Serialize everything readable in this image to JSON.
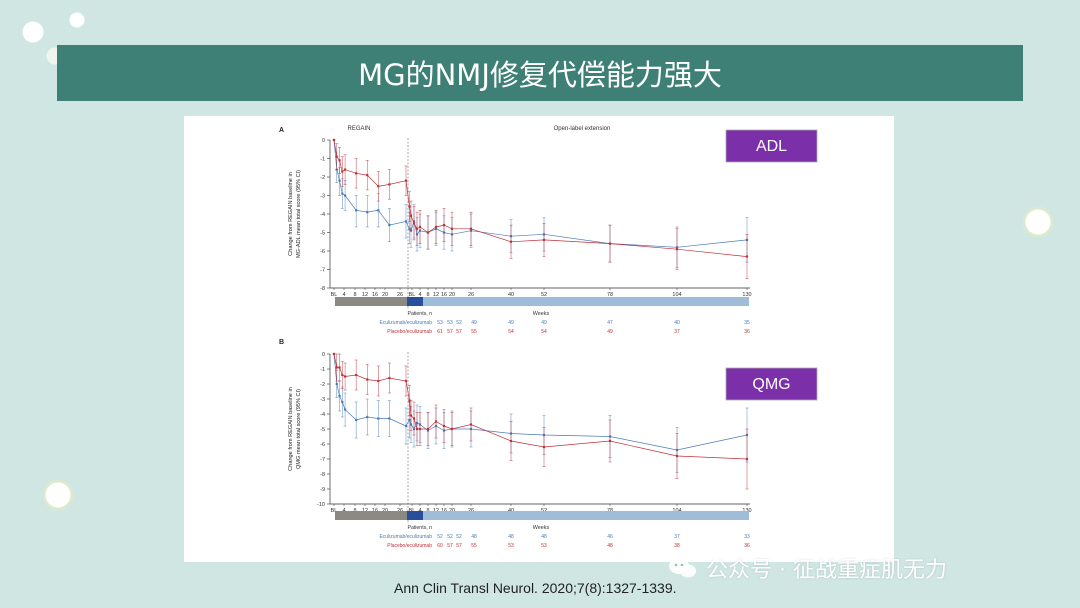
{
  "slide": {
    "title": "MG的NMJ修复代偿能力强大",
    "citation": "Ann Clin Transl Neurol. 2020;7(8):1327-1339.",
    "watermark": "公众号 · 征战重症肌无力"
  },
  "colors": {
    "title_bg": "#3e8075",
    "badge_bg": "#7b2fa8",
    "ecu": "#4a7bb8",
    "placebo": "#c0303a",
    "phase_regain": "#8a8a82",
    "phase_ole": "#9fbdd8",
    "phase_mid": "#2a4f9a"
  },
  "chart_data": [
    {
      "type": "line",
      "panel": "A",
      "badge": "ADL",
      "phase_labels": [
        "REGAIN",
        "Open-label extension"
      ],
      "ylabel": "Change from REGAIN baseline in MG-ADL mean total score (95% CI)",
      "ylabel_lines": [
        "Change from REGAIN baseline in",
        "MG-ADL mean total score (95% CI)"
      ],
      "xlabel": "Weeks",
      "ylim": [
        -8,
        0
      ],
      "yticks": [
        0,
        -1,
        -2,
        -3,
        -4,
        -5,
        -6,
        -7,
        -8
      ],
      "x_ticks_regain": [
        "BL",
        "4",
        "8",
        "12",
        "16",
        "20",
        "26"
      ],
      "x_ticks_ole": [
        "BL",
        "4",
        "8",
        "12",
        "16",
        "20",
        "26",
        "40",
        "52",
        "78",
        "104",
        "130"
      ],
      "patients_label": "Patients, n",
      "series": [
        {
          "name": "Eculizumab/eculizumab",
          "points": [
            {
              "t": -26,
              "y": 0,
              "lo": 0,
              "hi": 0
            },
            {
              "t": -25,
              "y": -1.6,
              "lo": -2.3,
              "hi": -0.9
            },
            {
              "t": -24,
              "y": -2.2,
              "lo": -3.0,
              "hi": -1.5
            },
            {
              "t": -23,
              "y": -2.9,
              "lo": -3.7,
              "hi": -2.1
            },
            {
              "t": -22,
              "y": -3.0,
              "lo": -3.8,
              "hi": -2.2
            },
            {
              "t": -18,
              "y": -3.8,
              "lo": -4.7,
              "hi": -3.0
            },
            {
              "t": -14,
              "y": -3.9,
              "lo": -4.7,
              "hi": -3.0
            },
            {
              "t": -10,
              "y": -3.8,
              "lo": -4.7,
              "hi": -2.9
            },
            {
              "t": -6,
              "y": -4.6,
              "lo": -5.5,
              "hi": -3.7
            },
            {
              "t": 0,
              "y": -4.4,
              "lo": -5.3,
              "hi": -3.5
            },
            {
              "t": 0.5,
              "y": -4.8,
              "lo": -5.6,
              "hi": -3.9
            },
            {
              "t": 1,
              "y": -4.9,
              "lo": -5.8,
              "hi": -4.0
            },
            {
              "t": 2,
              "y": -4.4,
              "lo": -5.3,
              "hi": -3.5
            },
            {
              "t": 3,
              "y": -5.1,
              "lo": -6.0,
              "hi": -4.2
            },
            {
              "t": 4,
              "y": -4.9,
              "lo": -5.8,
              "hi": -4.0
            },
            {
              "t": 8,
              "y": -5.0,
              "lo": -5.9,
              "hi": -4.1
            },
            {
              "t": 12,
              "y": -4.8,
              "lo": -5.7,
              "hi": -3.9
            },
            {
              "t": 16,
              "y": -5.0,
              "lo": -5.9,
              "hi": -4.1
            },
            {
              "t": 20,
              "y": -5.1,
              "lo": -6.0,
              "hi": -4.2
            },
            {
              "t": 26,
              "y": -4.9,
              "lo": -5.8,
              "hi": -4.0
            },
            {
              "t": 40,
              "y": -5.2,
              "lo": -6.1,
              "hi": -4.3
            },
            {
              "t": 52,
              "y": -5.1,
              "lo": -6.0,
              "hi": -4.2
            },
            {
              "t": 78,
              "y": -5.6,
              "lo": -6.6,
              "hi": -4.6
            },
            {
              "t": 104,
              "y": -5.8,
              "lo": -6.9,
              "hi": -4.7
            },
            {
              "t": 130,
              "y": -5.4,
              "lo": -6.6,
              "hi": -4.2
            }
          ],
          "n": [
            "53",
            "53",
            "52",
            "49",
            "49",
            "49",
            "47",
            "40",
            "35"
          ]
        },
        {
          "name": "Placebo/eculizumab",
          "points": [
            {
              "t": -26,
              "y": 0,
              "lo": 0,
              "hi": 0
            },
            {
              "t": -25,
              "y": -0.9,
              "lo": -1.6,
              "hi": -0.2
            },
            {
              "t": -24,
              "y": -1.1,
              "lo": -1.8,
              "hi": -0.4
            },
            {
              "t": -23,
              "y": -1.7,
              "lo": -2.5,
              "hi": -0.9
            },
            {
              "t": -22,
              "y": -1.6,
              "lo": -2.4,
              "hi": -0.8
            },
            {
              "t": -18,
              "y": -1.8,
              "lo": -2.6,
              "hi": -1.0
            },
            {
              "t": -14,
              "y": -1.9,
              "lo": -2.7,
              "hi": -1.1
            },
            {
              "t": -10,
              "y": -2.5,
              "lo": -3.3,
              "hi": -1.7
            },
            {
              "t": -6,
              "y": -2.4,
              "lo": -3.2,
              "hi": -1.6
            },
            {
              "t": 0,
              "y": -2.2,
              "lo": -3.0,
              "hi": -1.4
            },
            {
              "t": 0.5,
              "y": -3.6,
              "lo": -4.4,
              "hi": -2.8
            },
            {
              "t": 1,
              "y": -4.1,
              "lo": -4.9,
              "hi": -3.3
            },
            {
              "t": 2,
              "y": -4.5,
              "lo": -5.4,
              "hi": -3.6
            },
            {
              "t": 3,
              "y": -4.8,
              "lo": -5.7,
              "hi": -3.9
            },
            {
              "t": 4,
              "y": -4.7,
              "lo": -5.6,
              "hi": -3.8
            },
            {
              "t": 8,
              "y": -5.0,
              "lo": -5.9,
              "hi": -4.1
            },
            {
              "t": 12,
              "y": -4.7,
              "lo": -5.6,
              "hi": -3.8
            },
            {
              "t": 16,
              "y": -4.6,
              "lo": -5.5,
              "hi": -3.7
            },
            {
              "t": 20,
              "y": -4.8,
              "lo": -5.7,
              "hi": -3.9
            },
            {
              "t": 26,
              "y": -4.8,
              "lo": -5.7,
              "hi": -3.9
            },
            {
              "t": 40,
              "y": -5.5,
              "lo": -6.4,
              "hi": -4.6
            },
            {
              "t": 52,
              "y": -5.4,
              "lo": -6.3,
              "hi": -4.5
            },
            {
              "t": 78,
              "y": -5.6,
              "lo": -6.6,
              "hi": -4.6
            },
            {
              "t": 104,
              "y": -5.9,
              "lo": -7.0,
              "hi": -4.8
            },
            {
              "t": 130,
              "y": -6.3,
              "lo": -7.5,
              "hi": -5.1
            }
          ],
          "n": [
            "61",
            "57",
            "57",
            "55",
            "54",
            "54",
            "49",
            "37",
            "36"
          ]
        }
      ]
    },
    {
      "type": "line",
      "panel": "B",
      "badge": "QMG",
      "ylabel": "Change from REGAIN baseline in QMG mean total score (95% CI)",
      "ylabel_lines": [
        "Change from REGAIN baseline in",
        "QMG mean total score (95% CI)"
      ],
      "xlabel": "Weeks",
      "ylim": [
        -10,
        0
      ],
      "yticks": [
        0,
        -1,
        -2,
        -3,
        -4,
        -5,
        -6,
        -7,
        -8,
        -9,
        -10
      ],
      "x_ticks_regain": [
        "BL",
        "4",
        "8",
        "12",
        "16",
        "20",
        "26"
      ],
      "x_ticks_ole": [
        "BL",
        "4",
        "8",
        "12",
        "16",
        "20",
        "26",
        "40",
        "52",
        "78",
        "104",
        "130"
      ],
      "patients_label": "Patients, n",
      "series": [
        {
          "name": "Eculizumab/eculizumab",
          "points": [
            {
              "t": -26,
              "y": 0,
              "lo": 0,
              "hi": 0
            },
            {
              "t": -25,
              "y": -2.0,
              "lo": -2.9,
              "hi": -1.1
            },
            {
              "t": -24,
              "y": -2.8,
              "lo": -3.8,
              "hi": -1.8
            },
            {
              "t": -23,
              "y": -3.2,
              "lo": -4.2,
              "hi": -2.2
            },
            {
              "t": -22,
              "y": -3.7,
              "lo": -4.8,
              "hi": -2.6
            },
            {
              "t": -18,
              "y": -4.4,
              "lo": -5.6,
              "hi": -3.2
            },
            {
              "t": -14,
              "y": -4.2,
              "lo": -5.4,
              "hi": -3.0
            },
            {
              "t": -10,
              "y": -4.3,
              "lo": -5.5,
              "hi": -3.1
            },
            {
              "t": -6,
              "y": -4.3,
              "lo": -5.5,
              "hi": -3.1
            },
            {
              "t": 0,
              "y": -4.8,
              "lo": -6.0,
              "hi": -3.6
            },
            {
              "t": 0.5,
              "y": -4.4,
              "lo": -5.6,
              "hi": -3.2
            },
            {
              "t": 1,
              "y": -4.7,
              "lo": -5.9,
              "hi": -3.5
            },
            {
              "t": 2,
              "y": -5.0,
              "lo": -6.2,
              "hi": -3.8
            },
            {
              "t": 3,
              "y": -4.6,
              "lo": -5.8,
              "hi": -3.4
            },
            {
              "t": 4,
              "y": -4.7,
              "lo": -5.9,
              "hi": -3.5
            },
            {
              "t": 8,
              "y": -5.1,
              "lo": -6.3,
              "hi": -3.9
            },
            {
              "t": 12,
              "y": -4.8,
              "lo": -6.0,
              "hi": -3.6
            },
            {
              "t": 16,
              "y": -5.1,
              "lo": -6.3,
              "hi": -3.9
            },
            {
              "t": 20,
              "y": -5.0,
              "lo": -6.2,
              "hi": -3.8
            },
            {
              "t": 26,
              "y": -5.0,
              "lo": -6.2,
              "hi": -3.8
            },
            {
              "t": 40,
              "y": -5.3,
              "lo": -6.6,
              "hi": -4.0
            },
            {
              "t": 52,
              "y": -5.4,
              "lo": -6.7,
              "hi": -4.1
            },
            {
              "t": 78,
              "y": -5.5,
              "lo": -6.9,
              "hi": -4.1
            },
            {
              "t": 104,
              "y": -6.4,
              "lo": -7.9,
              "hi": -4.9
            },
            {
              "t": 130,
              "y": -5.4,
              "lo": -7.2,
              "hi": -3.6
            }
          ],
          "n": [
            "52",
            "52",
            "52",
            "48",
            "48",
            "48",
            "46",
            "37",
            "33"
          ]
        },
        {
          "name": "Placebo/eculizumab",
          "points": [
            {
              "t": -26,
              "y": 0,
              "lo": 0,
              "hi": 0
            },
            {
              "t": -25,
              "y": -0.9,
              "lo": -1.8,
              "hi": 0.0
            },
            {
              "t": -24,
              "y": -0.9,
              "lo": -1.8,
              "hi": 0.0
            },
            {
              "t": -23,
              "y": -1.4,
              "lo": -2.3,
              "hi": -0.5
            },
            {
              "t": -22,
              "y": -1.5,
              "lo": -2.4,
              "hi": -0.6
            },
            {
              "t": -18,
              "y": -1.4,
              "lo": -2.4,
              "hi": -0.4
            },
            {
              "t": -14,
              "y": -1.7,
              "lo": -2.7,
              "hi": -0.7
            },
            {
              "t": -10,
              "y": -1.8,
              "lo": -2.8,
              "hi": -0.8
            },
            {
              "t": -6,
              "y": -1.6,
              "lo": -2.6,
              "hi": -0.6
            },
            {
              "t": 0,
              "y": -1.8,
              "lo": -2.8,
              "hi": -0.8
            },
            {
              "t": 0.5,
              "y": -3.1,
              "lo": -4.1,
              "hi": -2.1
            },
            {
              "t": 1,
              "y": -4.1,
              "lo": -5.1,
              "hi": -3.1
            },
            {
              "t": 2,
              "y": -4.3,
              "lo": -5.4,
              "hi": -3.2
            },
            {
              "t": 3,
              "y": -5.0,
              "lo": -6.1,
              "hi": -3.9
            },
            {
              "t": 4,
              "y": -5.0,
              "lo": -6.1,
              "hi": -3.9
            },
            {
              "t": 8,
              "y": -5.0,
              "lo": -6.1,
              "hi": -3.9
            },
            {
              "t": 12,
              "y": -4.5,
              "lo": -5.6,
              "hi": -3.4
            },
            {
              "t": 16,
              "y": -4.8,
              "lo": -5.9,
              "hi": -3.7
            },
            {
              "t": 20,
              "y": -5.0,
              "lo": -6.1,
              "hi": -3.9
            },
            {
              "t": 26,
              "y": -4.7,
              "lo": -5.8,
              "hi": -3.6
            },
            {
              "t": 40,
              "y": -5.8,
              "lo": -7.1,
              "hi": -4.5
            },
            {
              "t": 52,
              "y": -6.2,
              "lo": -7.5,
              "hi": -4.9
            },
            {
              "t": 78,
              "y": -5.8,
              "lo": -7.2,
              "hi": -4.4
            },
            {
              "t": 104,
              "y": -6.8,
              "lo": -8.3,
              "hi": -5.3
            },
            {
              "t": 130,
              "y": -7.0,
              "lo": -9.0,
              "hi": -5.0
            }
          ],
          "n": [
            "60",
            "57",
            "57",
            "55",
            "53",
            "53",
            "48",
            "38",
            "36"
          ]
        }
      ]
    }
  ]
}
